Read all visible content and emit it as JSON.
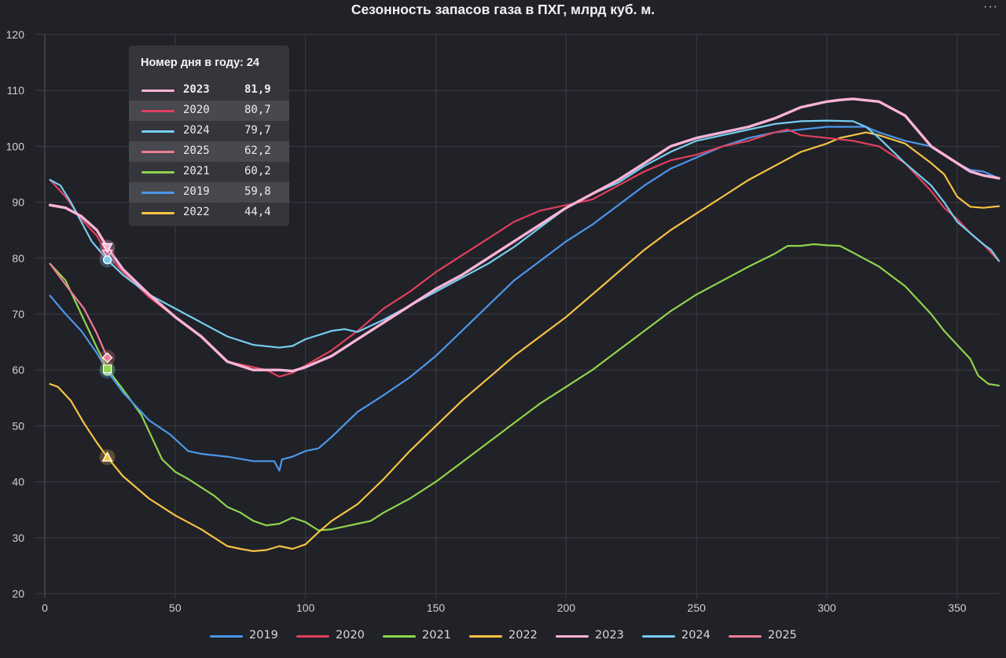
{
  "title": "Сезонность запасов газа в ПХГ, млрд куб. м.",
  "menu_icon": "ellipsis-icon",
  "menu_label": "···",
  "tooltip": {
    "header": "Номер дня в году: 24",
    "rows": [
      {
        "year": "2023",
        "value": "81,9",
        "color": "#f9b4d6",
        "bold": true
      },
      {
        "year": "2020",
        "value": "80,7",
        "color": "#e0405e"
      },
      {
        "year": "2024",
        "value": "79,7",
        "color": "#76cdf0"
      },
      {
        "year": "2025",
        "value": "62,2",
        "color": "#ef7d95"
      },
      {
        "year": "2021",
        "value": "60,2",
        "color": "#8ed44c"
      },
      {
        "year": "2019",
        "value": "59,8",
        "color": "#4a97e8"
      },
      {
        "year": "2022",
        "value": "44,4",
        "color": "#f6c342"
      }
    ]
  },
  "legend": [
    {
      "label": "2019",
      "color": "#4a97e8"
    },
    {
      "label": "2020",
      "color": "#e0405e"
    },
    {
      "label": "2021",
      "color": "#8ed44c"
    },
    {
      "label": "2022",
      "color": "#f6c342"
    },
    {
      "label": "2023",
      "color": "#f9b4d6"
    },
    {
      "label": "2024",
      "color": "#76cdf0"
    },
    {
      "label": "2025",
      "color": "#ef7d95"
    }
  ],
  "chart_data": {
    "type": "line",
    "title": "Сезонность запасов газа в ПХГ, млрд куб. м.",
    "xlabel": "",
    "ylabel": "",
    "xlim": [
      0,
      366
    ],
    "ylim": [
      20,
      120
    ],
    "xticks": [
      0,
      50,
      100,
      150,
      200,
      250,
      300,
      350
    ],
    "yticks": [
      20,
      30,
      40,
      50,
      60,
      70,
      80,
      90,
      100,
      110,
      120
    ],
    "grid": true,
    "legend_position": "bottom",
    "highlight_x": 24,
    "series": [
      {
        "name": "2019",
        "color": "#4a97e8",
        "width": 2.2,
        "marker": "circle",
        "points": [
          [
            2,
            73.3
          ],
          [
            8,
            70
          ],
          [
            14,
            67
          ],
          [
            20,
            63
          ],
          [
            24,
            59.8
          ],
          [
            30,
            56
          ],
          [
            40,
            51
          ],
          [
            48,
            48.5
          ],
          [
            55,
            45.5
          ],
          [
            60,
            45
          ],
          [
            70,
            44.5
          ],
          [
            80,
            43.7
          ],
          [
            88,
            43.7
          ],
          [
            90,
            42
          ],
          [
            91,
            44
          ],
          [
            95,
            44.5
          ],
          [
            100,
            45.5
          ],
          [
            105,
            46
          ],
          [
            110,
            48
          ],
          [
            120,
            52.5
          ],
          [
            130,
            55.5
          ],
          [
            140,
            58.7
          ],
          [
            150,
            62.5
          ],
          [
            160,
            67
          ],
          [
            170,
            71.5
          ],
          [
            180,
            76
          ],
          [
            190,
            79.5
          ],
          [
            200,
            83
          ],
          [
            210,
            86
          ],
          [
            220,
            89.5
          ],
          [
            230,
            93
          ],
          [
            240,
            96
          ],
          [
            250,
            98
          ],
          [
            260,
            100
          ],
          [
            270,
            101.5
          ],
          [
            280,
            102.5
          ],
          [
            290,
            103
          ],
          [
            300,
            103.5
          ],
          [
            310,
            103.5
          ],
          [
            315,
            103.5
          ],
          [
            320,
            102.5
          ],
          [
            330,
            101
          ],
          [
            340,
            100
          ],
          [
            350,
            97
          ],
          [
            355,
            95.8
          ],
          [
            360,
            95.5
          ],
          [
            365,
            94.5
          ]
        ]
      },
      {
        "name": "2020",
        "color": "#e0405e",
        "width": 2.2,
        "marker": "triangle-down",
        "points": [
          [
            2,
            94
          ],
          [
            8,
            91
          ],
          [
            14,
            87
          ],
          [
            20,
            84
          ],
          [
            24,
            80.7
          ],
          [
            30,
            77.5
          ],
          [
            40,
            73
          ],
          [
            50,
            69.5
          ],
          [
            60,
            66
          ],
          [
            70,
            61.5
          ],
          [
            80,
            60.5
          ],
          [
            85,
            60
          ],
          [
            90,
            58.8
          ],
          [
            95,
            59.5
          ],
          [
            100,
            60.8
          ],
          [
            110,
            63.5
          ],
          [
            120,
            67
          ],
          [
            130,
            71
          ],
          [
            140,
            74
          ],
          [
            150,
            77.5
          ],
          [
            160,
            80.5
          ],
          [
            170,
            83.5
          ],
          [
            180,
            86.5
          ],
          [
            190,
            88.5
          ],
          [
            200,
            89.5
          ],
          [
            210,
            90.5
          ],
          [
            220,
            93
          ],
          [
            230,
            95.5
          ],
          [
            240,
            97.5
          ],
          [
            250,
            98.5
          ],
          [
            260,
            100
          ],
          [
            270,
            101
          ],
          [
            280,
            102.5
          ],
          [
            285,
            103
          ],
          [
            290,
            102
          ],
          [
            300,
            101.5
          ],
          [
            310,
            101
          ],
          [
            320,
            100
          ],
          [
            330,
            97
          ],
          [
            340,
            92
          ],
          [
            345,
            89
          ],
          [
            350,
            87
          ],
          [
            355,
            84.5
          ],
          [
            360,
            82.5
          ],
          [
            363,
            81
          ],
          [
            366,
            79.5
          ]
        ]
      },
      {
        "name": "2021",
        "color": "#8ed44c",
        "width": 2.2,
        "marker": "square",
        "points": [
          [
            2,
            79
          ],
          [
            8,
            76
          ],
          [
            14,
            70
          ],
          [
            20,
            64
          ],
          [
            24,
            60.2
          ],
          [
            30,
            56.5
          ],
          [
            37,
            52
          ],
          [
            45,
            44
          ],
          [
            50,
            41.8
          ],
          [
            55,
            40.5
          ],
          [
            60,
            39
          ],
          [
            65,
            37.5
          ],
          [
            70,
            35.5
          ],
          [
            75,
            34.5
          ],
          [
            80,
            33
          ],
          [
            85,
            32.2
          ],
          [
            90,
            32.5
          ],
          [
            95,
            33.6
          ],
          [
            100,
            32.8
          ],
          [
            105,
            31.3
          ],
          [
            110,
            31.5
          ],
          [
            115,
            32
          ],
          [
            120,
            32.5
          ],
          [
            125,
            33
          ],
          [
            130,
            34.5
          ],
          [
            140,
            37
          ],
          [
            150,
            40
          ],
          [
            160,
            43.5
          ],
          [
            170,
            47
          ],
          [
            180,
            50.5
          ],
          [
            190,
            54
          ],
          [
            200,
            57
          ],
          [
            210,
            60
          ],
          [
            220,
            63.5
          ],
          [
            230,
            67
          ],
          [
            240,
            70.5
          ],
          [
            250,
            73.5
          ],
          [
            260,
            76
          ],
          [
            270,
            78.5
          ],
          [
            280,
            80.8
          ],
          [
            285,
            82.2
          ],
          [
            290,
            82.2
          ],
          [
            295,
            82.5
          ],
          [
            300,
            82.3
          ],
          [
            305,
            82.2
          ],
          [
            310,
            81
          ],
          [
            320,
            78.5
          ],
          [
            330,
            75
          ],
          [
            340,
            70
          ],
          [
            345,
            67
          ],
          [
            350,
            64.5
          ],
          [
            355,
            62
          ],
          [
            358,
            59
          ],
          [
            362,
            57.5
          ],
          [
            366,
            57.2
          ]
        ]
      },
      {
        "name": "2022",
        "color": "#f6c342",
        "width": 2.2,
        "marker": "triangle-up",
        "points": [
          [
            2,
            57.5
          ],
          [
            5,
            57
          ],
          [
            10,
            54.5
          ],
          [
            15,
            50.5
          ],
          [
            20,
            47
          ],
          [
            24,
            44.4
          ],
          [
            30,
            41
          ],
          [
            40,
            37
          ],
          [
            50,
            34
          ],
          [
            60,
            31.5
          ],
          [
            65,
            30
          ],
          [
            70,
            28.5
          ],
          [
            75,
            28
          ],
          [
            80,
            27.6
          ],
          [
            85,
            27.8
          ],
          [
            90,
            28.5
          ],
          [
            95,
            28
          ],
          [
            100,
            28.8
          ],
          [
            105,
            31
          ],
          [
            110,
            33
          ],
          [
            120,
            36
          ],
          [
            130,
            40.5
          ],
          [
            140,
            45.5
          ],
          [
            150,
            50
          ],
          [
            160,
            54.5
          ],
          [
            170,
            58.5
          ],
          [
            180,
            62.5
          ],
          [
            190,
            66
          ],
          [
            200,
            69.5
          ],
          [
            210,
            73.5
          ],
          [
            220,
            77.5
          ],
          [
            230,
            81.5
          ],
          [
            240,
            85
          ],
          [
            250,
            88
          ],
          [
            260,
            91
          ],
          [
            270,
            94
          ],
          [
            280,
            96.5
          ],
          [
            290,
            99
          ],
          [
            300,
            100.5
          ],
          [
            305,
            101.5
          ],
          [
            310,
            102
          ],
          [
            315,
            102.5
          ],
          [
            320,
            102
          ],
          [
            330,
            100.5
          ],
          [
            340,
            97
          ],
          [
            345,
            95
          ],
          [
            350,
            91
          ],
          [
            355,
            89.2
          ],
          [
            360,
            89
          ],
          [
            366,
            89.3
          ]
        ]
      },
      {
        "name": "2023",
        "color": "#f9b4d6",
        "width": 3.4,
        "marker": "triangle-down",
        "points": [
          [
            2,
            89.5
          ],
          [
            8,
            89
          ],
          [
            14,
            87.5
          ],
          [
            20,
            85
          ],
          [
            24,
            81.9
          ],
          [
            30,
            78
          ],
          [
            40,
            73.5
          ],
          [
            50,
            69.5
          ],
          [
            60,
            66
          ],
          [
            70,
            61.5
          ],
          [
            80,
            60
          ],
          [
            90,
            60
          ],
          [
            95,
            59.8
          ],
          [
            100,
            60.5
          ],
          [
            110,
            62.5
          ],
          [
            120,
            65.5
          ],
          [
            130,
            68.5
          ],
          [
            140,
            71.5
          ],
          [
            150,
            74.5
          ],
          [
            160,
            77
          ],
          [
            170,
            80
          ],
          [
            180,
            83
          ],
          [
            190,
            86
          ],
          [
            200,
            89
          ],
          [
            210,
            91.5
          ],
          [
            220,
            94
          ],
          [
            230,
            97
          ],
          [
            240,
            100
          ],
          [
            250,
            101.5
          ],
          [
            260,
            102.5
          ],
          [
            270,
            103.5
          ],
          [
            280,
            105
          ],
          [
            290,
            107
          ],
          [
            300,
            108
          ],
          [
            305,
            108.3
          ],
          [
            310,
            108.5
          ],
          [
            320,
            108
          ],
          [
            330,
            105.5
          ],
          [
            340,
            100
          ],
          [
            350,
            97
          ],
          [
            355,
            95.5
          ],
          [
            360,
            94.8
          ],
          [
            366,
            94.3
          ]
        ]
      },
      {
        "name": "2024",
        "color": "#76cdf0",
        "width": 2.2,
        "marker": "circle",
        "points": [
          [
            2,
            94
          ],
          [
            6,
            93
          ],
          [
            10,
            90
          ],
          [
            14,
            86.5
          ],
          [
            18,
            83
          ],
          [
            24,
            79.7
          ],
          [
            30,
            77
          ],
          [
            40,
            73.5
          ],
          [
            50,
            71
          ],
          [
            60,
            68.5
          ],
          [
            70,
            66
          ],
          [
            80,
            64.5
          ],
          [
            90,
            64
          ],
          [
            95,
            64.3
          ],
          [
            100,
            65.5
          ],
          [
            110,
            67
          ],
          [
            115,
            67.3
          ],
          [
            120,
            66.8
          ],
          [
            130,
            69
          ],
          [
            140,
            71.5
          ],
          [
            150,
            74
          ],
          [
            160,
            76.5
          ],
          [
            170,
            79
          ],
          [
            180,
            82
          ],
          [
            190,
            85.5
          ],
          [
            200,
            89
          ],
          [
            210,
            91.5
          ],
          [
            220,
            93.5
          ],
          [
            230,
            96.5
          ],
          [
            240,
            99
          ],
          [
            250,
            101
          ],
          [
            260,
            102
          ],
          [
            270,
            103
          ],
          [
            280,
            104
          ],
          [
            290,
            104.5
          ],
          [
            300,
            104.6
          ],
          [
            310,
            104.5
          ],
          [
            315,
            103.5
          ],
          [
            320,
            101.5
          ],
          [
            330,
            97
          ],
          [
            340,
            93
          ],
          [
            345,
            90
          ],
          [
            350,
            86.5
          ],
          [
            355,
            84.5
          ],
          [
            360,
            82.5
          ],
          [
            363,
            81.5
          ],
          [
            366,
            79.5
          ]
        ]
      },
      {
        "name": "2025",
        "color": "#ef7d95",
        "width": 2.2,
        "marker": "diamond",
        "points": [
          [
            2,
            79
          ],
          [
            6,
            76.5
          ],
          [
            10,
            74
          ],
          [
            15,
            71
          ],
          [
            20,
            66.5
          ],
          [
            24,
            62.2
          ]
        ]
      }
    ]
  }
}
